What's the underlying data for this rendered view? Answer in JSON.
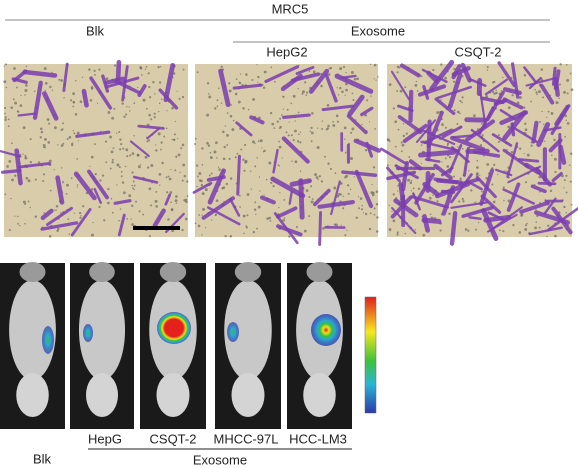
{
  "top": {
    "title": "MRC5",
    "blank": "Blk",
    "group": "Exosome",
    "panels": [
      "HepG2",
      "CSQT-2"
    ]
  },
  "bottom": {
    "panels": [
      "HepG",
      "CSQT-2",
      "MHCC-97L",
      "HCC-LM3"
    ],
    "blank": "Blk",
    "group": "Exosome"
  }
}
